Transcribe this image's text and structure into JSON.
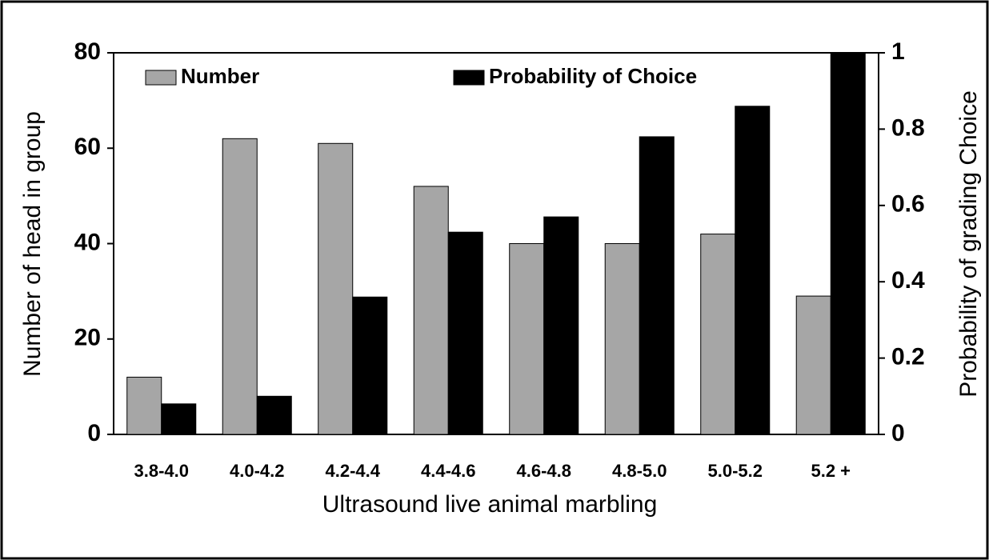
{
  "chart_data": {
    "type": "bar",
    "x_label": "Ultrasound live animal marbling",
    "y_label": "Number of head in group",
    "y2_label": "Probability of grading Choice",
    "categories": [
      "3.8-4.0",
      "4.0-4.2",
      "4.2-4.4",
      "4.4-4.6",
      "4.6-4.8",
      "4.8-5.0",
      "5.0-5.2",
      "5.2 +"
    ],
    "series": [
      {
        "name": "Number",
        "color": "#a6a6a6",
        "values": [
          12,
          62,
          61,
          52,
          40,
          40,
          42,
          29
        ]
      },
      {
        "name": "Probability of Choice",
        "color": "#000000",
        "axis": "y2",
        "values": [
          0.08,
          0.1,
          0.36,
          0.53,
          0.57,
          0.78,
          0.86,
          1
        ]
      }
    ],
    "ylim": [
      0,
      80
    ],
    "yticks": [
      0,
      20,
      40,
      60,
      80
    ],
    "y2lim": [
      0,
      1
    ],
    "y2ticks": [
      0,
      0.2,
      0.4,
      0.6,
      0.8,
      1
    ],
    "legend": "top",
    "grid": false
  }
}
